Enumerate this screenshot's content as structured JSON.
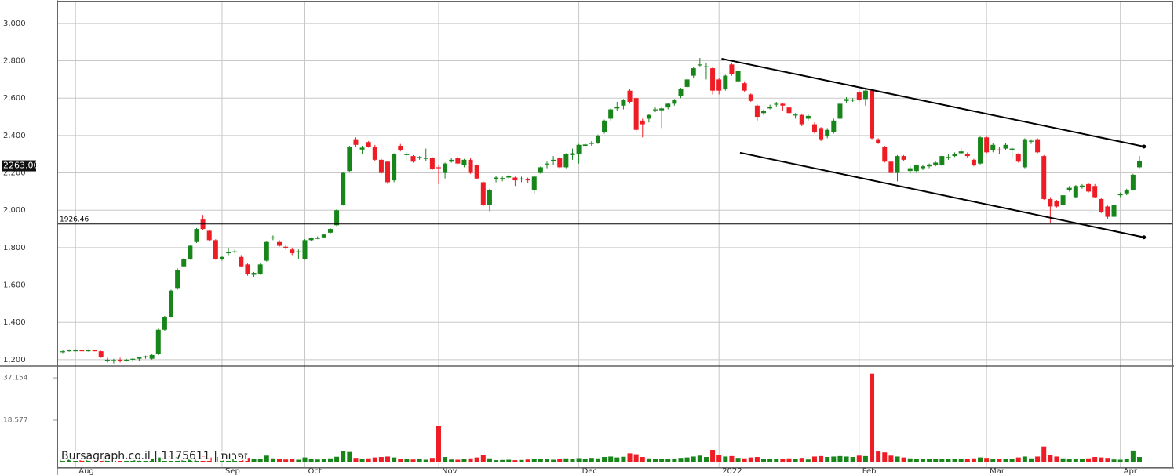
{
  "chart_data": {
    "type": "candlestick",
    "up_color": "#17851a",
    "down_color": "#ee1c24",
    "grid": true,
    "ylim": [
      1166,
      3117
    ],
    "yticks": [
      {
        "value": 1200,
        "label": "1,200"
      },
      {
        "value": 1400,
        "label": "1,400"
      },
      {
        "value": 1600,
        "label": "1,600"
      },
      {
        "value": 1800,
        "label": "1,800"
      },
      {
        "value": 2000,
        "label": "2,000"
      },
      {
        "value": 2200,
        "label": "2,200"
      },
      {
        "value": 2400,
        "label": "2,400"
      },
      {
        "value": 2600,
        "label": "2,600"
      },
      {
        "value": 2800,
        "label": "2,800"
      },
      {
        "value": 3000,
        "label": "3,000"
      }
    ],
    "xticks": [
      {
        "value": 2,
        "label": "Aug"
      },
      {
        "value": 25,
        "label": "Sep"
      },
      {
        "value": 38,
        "label": "Oct"
      },
      {
        "value": 59,
        "label": "Nov"
      },
      {
        "value": 81,
        "label": "Dec"
      },
      {
        "value": 103,
        "label": "2022"
      },
      {
        "value": 125,
        "label": "Feb"
      },
      {
        "value": 145,
        "label": "Mar"
      },
      {
        "value": 166,
        "label": "Apr"
      }
    ],
    "last_price": {
      "value": 2263,
      "label": "2263.00"
    },
    "reference_line": 1926.46,
    "trendlines": [
      {
        "x": [
          103.4,
          169.7
        ],
        "y": [
          2811,
          2341
        ]
      },
      {
        "x": [
          106.3,
          169.7
        ],
        "y": [
          2308,
          1855
        ]
      }
    ],
    "watermark": "Bursagraph.co.il | 1175611 | זפרות",
    "candles": [
      [
        1240,
        1250,
        1235,
        1245
      ],
      [
        1248,
        1255,
        1243,
        1250
      ],
      [
        1250,
        1256,
        1245,
        1250
      ],
      [
        1250,
        1252,
        1246,
        1248
      ],
      [
        1248,
        1255,
        1244,
        1250
      ],
      [
        1250,
        1253,
        1245,
        1247
      ],
      [
        1245,
        1248,
        1210,
        1215
      ],
      [
        1200,
        1210,
        1185,
        1200
      ],
      [
        1195,
        1205,
        1180,
        1198
      ],
      [
        1200,
        1210,
        1185,
        1195
      ],
      [
        1195,
        1205,
        1190,
        1200
      ],
      [
        1200,
        1208,
        1188,
        1205
      ],
      [
        1205,
        1215,
        1195,
        1212
      ],
      [
        1212,
        1222,
        1205,
        1218
      ],
      [
        1205,
        1232,
        1200,
        1225
      ],
      [
        1230,
        1365,
        1225,
        1360
      ],
      [
        1360,
        1435,
        1355,
        1430
      ],
      [
        1430,
        1575,
        1425,
        1570
      ],
      [
        1580,
        1690,
        1575,
        1680
      ],
      [
        1700,
        1745,
        1695,
        1740
      ],
      [
        1740,
        1815,
        1735,
        1810
      ],
      [
        1830,
        1905,
        1825,
        1900
      ],
      [
        1950,
        1975,
        1895,
        1900
      ],
      [
        1890,
        1895,
        1835,
        1840
      ],
      [
        1840,
        1845,
        1735,
        1740
      ],
      [
        1740,
        1755,
        1730,
        1750
      ],
      [
        1770,
        1800,
        1760,
        1775
      ],
      [
        1775,
        1790,
        1770,
        1780
      ],
      [
        1750,
        1760,
        1695,
        1700
      ],
      [
        1710,
        1715,
        1650,
        1660
      ],
      [
        1655,
        1670,
        1640,
        1665
      ],
      [
        1660,
        1715,
        1655,
        1710
      ],
      [
        1730,
        1835,
        1725,
        1830
      ],
      [
        1850,
        1865,
        1840,
        1855
      ],
      [
        1830,
        1840,
        1805,
        1810
      ],
      [
        1805,
        1815,
        1790,
        1800
      ],
      [
        1790,
        1800,
        1760,
        1770
      ],
      [
        1775,
        1790,
        1740,
        1780
      ],
      [
        1740,
        1845,
        1735,
        1840
      ],
      [
        1840,
        1855,
        1835,
        1850
      ],
      [
        1850,
        1860,
        1845,
        1852
      ],
      [
        1855,
        1875,
        1850,
        1870
      ],
      [
        1880,
        1905,
        1875,
        1900
      ],
      [
        1920,
        2005,
        1915,
        2000
      ],
      [
        2030,
        2205,
        2025,
        2200
      ],
      [
        2210,
        2345,
        2205,
        2340
      ],
      [
        2380,
        2390,
        2340,
        2350
      ],
      [
        2325,
        2345,
        2300,
        2335
      ],
      [
        2365,
        2370,
        2335,
        2340
      ],
      [
        2340,
        2350,
        2265,
        2270
      ],
      [
        2270,
        2275,
        2195,
        2200
      ],
      [
        2260,
        2265,
        2140,
        2150
      ],
      [
        2160,
        2305,
        2150,
        2300
      ],
      [
        2345,
        2355,
        2315,
        2320
      ],
      [
        2295,
        2310,
        2260,
        2300
      ],
      [
        2290,
        2295,
        2255,
        2260
      ],
      [
        2280,
        2290,
        2270,
        2285
      ],
      [
        2275,
        2330,
        2265,
        2280
      ],
      [
        2280,
        2285,
        2215,
        2220
      ],
      [
        2230,
        2240,
        2140,
        2225
      ],
      [
        2200,
        2255,
        2170,
        2250
      ],
      [
        2260,
        2280,
        2255,
        2270
      ],
      [
        2280,
        2290,
        2245,
        2250
      ],
      [
        2240,
        2275,
        2230,
        2270
      ],
      [
        2270,
        2280,
        2195,
        2200
      ],
      [
        2240,
        2245,
        2165,
        2170
      ],
      [
        2150,
        2155,
        2020,
        2030
      ],
      [
        2030,
        2115,
        1995,
        2110
      ],
      [
        2165,
        2185,
        2150,
        2175
      ],
      [
        2170,
        2180,
        2155,
        2172
      ],
      [
        2175,
        2190,
        2165,
        2182
      ],
      [
        2175,
        2180,
        2130,
        2160
      ],
      [
        2165,
        2180,
        2150,
        2170
      ],
      [
        2168,
        2175,
        2145,
        2160
      ],
      [
        2110,
        2185,
        2090,
        2180
      ],
      [
        2200,
        2235,
        2195,
        2230
      ],
      [
        2245,
        2260,
        2225,
        2250
      ],
      [
        2265,
        2290,
        2240,
        2270
      ],
      [
        2280,
        2285,
        2225,
        2230
      ],
      [
        2230,
        2305,
        2225,
        2300
      ],
      [
        2295,
        2330,
        2270,
        2305
      ],
      [
        2300,
        2355,
        2250,
        2350
      ],
      [
        2345,
        2360,
        2340,
        2352
      ],
      [
        2355,
        2370,
        2345,
        2362
      ],
      [
        2360,
        2405,
        2355,
        2400
      ],
      [
        2420,
        2485,
        2410,
        2480
      ],
      [
        2490,
        2545,
        2480,
        2540
      ],
      [
        2545,
        2580,
        2530,
        2552
      ],
      [
        2560,
        2595,
        2540,
        2590
      ],
      [
        2640,
        2650,
        2570,
        2580
      ],
      [
        2600,
        2605,
        2420,
        2430
      ],
      [
        2480,
        2490,
        2390,
        2460
      ],
      [
        2490,
        2515,
        2470,
        2510
      ],
      [
        2535,
        2550,
        2525,
        2540
      ],
      [
        2535,
        2550,
        2440,
        2545
      ],
      [
        2550,
        2575,
        2540,
        2570
      ],
      [
        2570,
        2595,
        2560,
        2590
      ],
      [
        2610,
        2655,
        2600,
        2650
      ],
      [
        2660,
        2705,
        2655,
        2700
      ],
      [
        2720,
        2765,
        2710,
        2760
      ],
      [
        2775,
        2815,
        2770,
        2780
      ],
      [
        2765,
        2790,
        2700,
        2770
      ],
      [
        2760,
        2765,
        2620,
        2640
      ],
      [
        2700,
        2710,
        2620,
        2640
      ],
      [
        2650,
        2725,
        2640,
        2720
      ],
      [
        2780,
        2790,
        2720,
        2730
      ],
      [
        2690,
        2750,
        2680,
        2745
      ],
      [
        2680,
        2690,
        2635,
        2640
      ],
      [
        2620,
        2625,
        2580,
        2585
      ],
      [
        2560,
        2565,
        2480,
        2500
      ],
      [
        2520,
        2540,
        2510,
        2530
      ],
      [
        2545,
        2565,
        2540,
        2555
      ],
      [
        2565,
        2580,
        2555,
        2570
      ],
      [
        2570,
        2575,
        2530,
        2560
      ],
      [
        2550,
        2555,
        2500,
        2520
      ],
      [
        2510,
        2520,
        2490,
        2512
      ],
      [
        2510,
        2515,
        2450,
        2460
      ],
      [
        2490,
        2515,
        2480,
        2505
      ],
      [
        2460,
        2470,
        2410,
        2420
      ],
      [
        2440,
        2445,
        2370,
        2380
      ],
      [
        2395,
        2440,
        2385,
        2430
      ],
      [
        2420,
        2490,
        2410,
        2480
      ],
      [
        2490,
        2575,
        2485,
        2570
      ],
      [
        2585,
        2605,
        2575,
        2595
      ],
      [
        2590,
        2600,
        2580,
        2592
      ],
      [
        2630,
        2640,
        2580,
        2590
      ],
      [
        2595,
        2650,
        2560,
        2640
      ],
      [
        2640,
        2645,
        2380,
        2385
      ],
      [
        2380,
        2385,
        2355,
        2360
      ],
      [
        2340,
        2345,
        2255,
        2260
      ],
      [
        2260,
        2265,
        2195,
        2200
      ],
      [
        2200,
        2295,
        2155,
        2290
      ],
      [
        2290,
        2295,
        2265,
        2270
      ],
      [
        2210,
        2235,
        2195,
        2225
      ],
      [
        2210,
        2245,
        2200,
        2240
      ],
      [
        2225,
        2240,
        2215,
        2235
      ],
      [
        2235,
        2250,
        2225,
        2245
      ],
      [
        2240,
        2260,
        2235,
        2255
      ],
      [
        2240,
        2295,
        2235,
        2290
      ],
      [
        2280,
        2300,
        2270,
        2285
      ],
      [
        2290,
        2310,
        2285,
        2300
      ],
      [
        2305,
        2330,
        2300,
        2315
      ],
      [
        2300,
        2310,
        2280,
        2290
      ],
      [
        2270,
        2275,
        2235,
        2240
      ],
      [
        2250,
        2395,
        2245,
        2390
      ],
      [
        2390,
        2395,
        2305,
        2310
      ],
      [
        2320,
        2360,
        2310,
        2350
      ],
      [
        2325,
        2340,
        2300,
        2320
      ],
      [
        2330,
        2360,
        2320,
        2350
      ],
      [
        2320,
        2340,
        2280,
        2330
      ],
      [
        2300,
        2305,
        2255,
        2260
      ],
      [
        2230,
        2385,
        2225,
        2380
      ],
      [
        2370,
        2380,
        2355,
        2372
      ],
      [
        2380,
        2385,
        2305,
        2310
      ],
      [
        2290,
        2295,
        2055,
        2060
      ],
      [
        2060,
        2070,
        1930,
        2020
      ],
      [
        2050,
        2055,
        2015,
        2020
      ],
      [
        2030,
        2085,
        2025,
        2080
      ],
      [
        2110,
        2130,
        2100,
        2120
      ],
      [
        2070,
        2135,
        2065,
        2130
      ],
      [
        2125,
        2140,
        2115,
        2132
      ],
      [
        2140,
        2145,
        2095,
        2100
      ],
      [
        2130,
        2140,
        2065,
        2070
      ],
      [
        2060,
        2065,
        1985,
        1990
      ],
      [
        2020,
        2025,
        1955,
        1965
      ],
      [
        1965,
        2035,
        1960,
        2030
      ],
      [
        2080,
        2095,
        2070,
        2085
      ],
      [
        2090,
        2115,
        2080,
        2110
      ],
      [
        2110,
        2195,
        2105,
        2190
      ],
      [
        2230,
        2290,
        2225,
        2263
      ]
    ],
    "volume": {
      "ylim": [
        0,
        42000
      ],
      "yticks": [
        {
          "value": 18577,
          "label": "18,577"
        },
        {
          "value": 37154,
          "label": "37,154"
        }
      ],
      "values": [
        1200,
        1500,
        1300,
        1100,
        1400,
        1200,
        2800,
        1500,
        1300,
        1000,
        1200,
        1400,
        1600,
        1800,
        1500,
        2200,
        2500,
        2600,
        2400,
        2200,
        2000,
        2300,
        2600,
        2200,
        2400,
        1300,
        1500,
        1700,
        1800,
        2000,
        1400,
        1600,
        3000,
        1800,
        1400,
        1300,
        1500,
        1200,
        2200,
        1600,
        1300,
        1500,
        1800,
        2500,
        5000,
        4600,
        2000,
        1600,
        1800,
        2200,
        2400,
        2600,
        2200,
        1600,
        1500,
        1300,
        1400,
        1200,
        2000,
        16000,
        2400,
        1300,
        1200,
        1400,
        1800,
        2200,
        3200,
        1800,
        1000,
        1100,
        1200,
        1000,
        1100,
        1300,
        1600,
        1500,
        1400,
        1200,
        1500,
        1800,
        1600,
        1900,
        1700,
        2000,
        1800,
        2400,
        2600,
        2200,
        2500,
        4000,
        3600,
        2400,
        1800,
        1500,
        1400,
        1600,
        1700,
        2000,
        2200,
        2600,
        3000,
        2400,
        5500,
        3200,
        2600,
        2800,
        2000,
        1800,
        2200,
        2400,
        1500,
        1600,
        1400,
        1500,
        1800,
        1400,
        2000,
        1300,
        2600,
        2800,
        2400,
        2600,
        2800,
        2600,
        2400,
        3000,
        2800,
        39000,
        4800,
        4400,
        3000,
        2600,
        2200,
        1800,
        1700,
        1600,
        1500,
        1400,
        1700,
        1600,
        1500,
        1700,
        1400,
        1800,
        2200,
        2000,
        1600,
        1400,
        1600,
        1500,
        2200,
        2600,
        1800,
        2600,
        7000,
        3400,
        2600,
        1800,
        1600,
        1400,
        1500,
        1800,
        2400,
        2200,
        2000,
        1300,
        1200,
        1500,
        5200,
        2400
      ]
    }
  }
}
